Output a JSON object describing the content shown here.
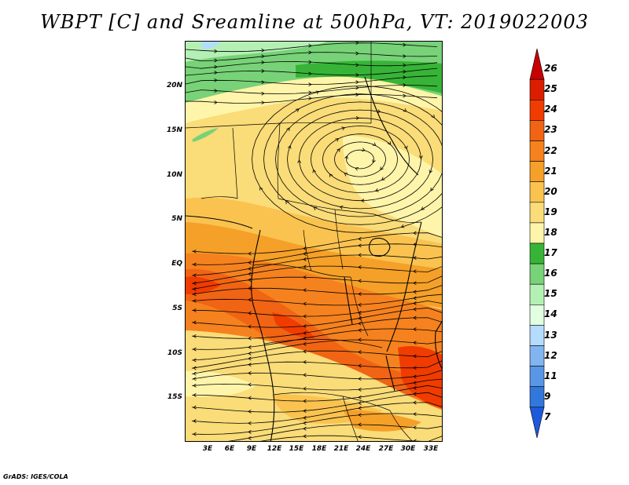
{
  "title": "WBPT [C] and Sreamline at 500hPa, VT: 2019022003",
  "credit": "GrADS: IGES/COLA",
  "lat_labels": [
    "20N",
    "15N",
    "10N",
    "5N",
    "EQ",
    "5S",
    "10S",
    "15S"
  ],
  "lon_labels": [
    "3E",
    "6E",
    "9E",
    "12E",
    "15E",
    "18E",
    "21E",
    "24E",
    "27E",
    "30E",
    "33E"
  ],
  "colorbar": {
    "labels": [
      "26",
      "25",
      "24",
      "23",
      "22",
      "21",
      "20",
      "19",
      "18",
      "17",
      "16",
      "15",
      "14",
      "13",
      "12",
      "11",
      "9",
      "7"
    ],
    "colors": [
      "#c80000",
      "#dc1e00",
      "#f03c00",
      "#f06414",
      "#f5821e",
      "#f5a028",
      "#fac350",
      "#fadc78",
      "#fff5aa",
      "#37b437",
      "#78d278",
      "#b4f0b4",
      "#e1ffe1",
      "#b4dcff",
      "#82b4f0",
      "#5a96e6",
      "#3278dc",
      "#1e5adc"
    ]
  },
  "map_colors": {
    "green_dark": "#37b437",
    "green_mid": "#78d278",
    "green_light": "#b4f0b4",
    "yellow_light": "#fff5aa",
    "yellow": "#fadc78",
    "yellow_orange": "#fac350",
    "orange_light": "#f5a028",
    "orange": "#f5821e",
    "orange_dark": "#f06414",
    "red": "#f03c00",
    "blue_light": "#b4dcff"
  }
}
